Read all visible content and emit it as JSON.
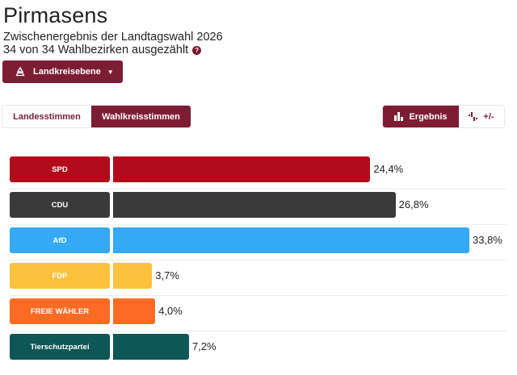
{
  "header": {
    "title": "Pirmasens",
    "subtitle": "Zwischenergebnis der Landtagswahl 2026",
    "status": "34 von 34 Wahlbezirken ausgezählt"
  },
  "level_button": {
    "label": "Landkreisebene"
  },
  "tabs": [
    {
      "label": "Landesstimmen",
      "active": false
    },
    {
      "label": "Wahlkreisstimmen",
      "active": true
    }
  ],
  "view_toggle": [
    {
      "label": "Ergebnis",
      "active": true
    },
    {
      "label": "+/-",
      "active": false
    }
  ],
  "chart_data": {
    "type": "bar",
    "orientation": "horizontal",
    "categories": [
      "SPD",
      "CDU",
      "AfD",
      "FDP",
      "FREIE WÄHLER",
      "Tierschutzpartei"
    ],
    "values": [
      24.4,
      26.8,
      33.8,
      3.7,
      4.0,
      7.2
    ],
    "value_labels": [
      "24,4%",
      "26,8%",
      "33,8%",
      "3,7%",
      "4,0%",
      "7,2%"
    ],
    "colors": [
      "#b20c1c",
      "#3a3a3a",
      "#35a9f4",
      "#fcc13d",
      "#fc6b23",
      "#0e5658"
    ],
    "xlim": [
      0,
      33.8
    ],
    "unit": "%"
  }
}
